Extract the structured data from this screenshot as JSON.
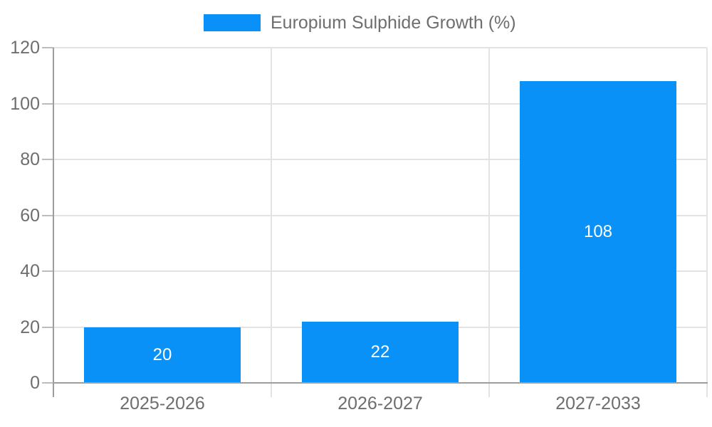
{
  "chart_data": {
    "type": "bar",
    "title": "Europium Sulphide Growth (%)",
    "categories": [
      "2025-2026",
      "2026-2027",
      "2027-2033"
    ],
    "values": [
      20,
      22,
      108
    ],
    "series": [
      {
        "name": "Europium Sulphide Growth (%)",
        "values": [
          20,
          22,
          108
        ]
      }
    ],
    "bar_value_labels": [
      "20",
      "22",
      "108"
    ],
    "xlabel": "",
    "ylabel": "",
    "ylim": [
      0,
      120
    ],
    "yticks": [
      0,
      20,
      40,
      60,
      80,
      100,
      120
    ],
    "ytick_labels": [
      "0",
      "20",
      "40",
      "60",
      "80",
      "100",
      "120"
    ],
    "grid": true,
    "legend_position": "top",
    "colors": {
      "bar": "#0991f7",
      "bar_value_text": "#ffffff",
      "grid_line": "#e3e3e3",
      "axis_line": "#9e9e9e",
      "tick_mark": "#bdbdbd",
      "axis_text": "#6e6e6e",
      "legend_text": "#6e6e6e",
      "background": "#ffffff"
    }
  }
}
